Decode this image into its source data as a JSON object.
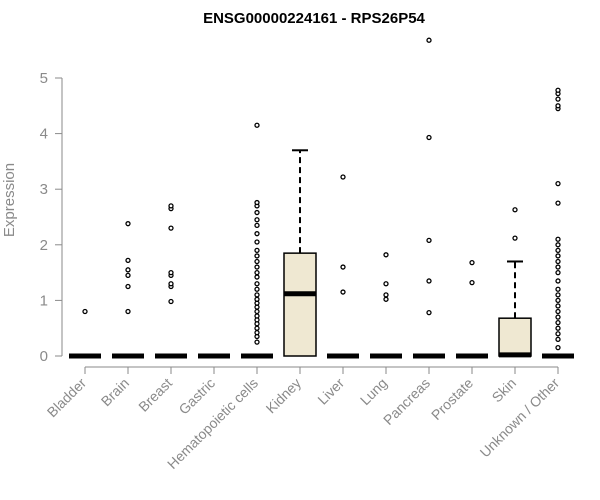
{
  "chart_data": {
    "type": "box",
    "title": "ENSG00000224161 - RPS26P54",
    "ylabel": "Expression",
    "xlabel": "",
    "ylim": [
      0,
      5.3
    ],
    "yticks": [
      0,
      1,
      2,
      3,
      4,
      5
    ],
    "box_fill": "#efe8d2",
    "categories": [
      "Bladder",
      "Brain",
      "Breast",
      "Gastric",
      "Hematopoietic cells",
      "Kidney",
      "Liver",
      "Lung",
      "Pancreas",
      "Prostate",
      "Skin",
      "Unknown / Other"
    ],
    "boxes": [
      {
        "q1": 0,
        "median": 0,
        "q3": 0,
        "whisker_low": 0,
        "whisker_high": 0,
        "outliers": [
          0.8
        ]
      },
      {
        "q1": 0,
        "median": 0,
        "q3": 0,
        "whisker_low": 0,
        "whisker_high": 0,
        "outliers": [
          0.8,
          1.25,
          1.45,
          1.55,
          1.72,
          2.38
        ]
      },
      {
        "q1": 0,
        "median": 0,
        "q3": 0,
        "whisker_low": 0,
        "whisker_high": 0,
        "outliers": [
          0.98,
          1.25,
          1.3,
          1.45,
          1.5,
          2.3,
          2.65,
          2.7
        ]
      },
      {
        "q1": 0,
        "median": 0,
        "q3": 0,
        "whisker_low": 0,
        "whisker_high": 0,
        "outliers": []
      },
      {
        "q1": 0,
        "median": 0,
        "q3": 0,
        "whisker_low": 0,
        "whisker_high": 0,
        "outliers": [
          0.25,
          0.35,
          0.42,
          0.5,
          0.58,
          0.65,
          0.72,
          0.8,
          0.88,
          0.95,
          1.02,
          1.1,
          1.2,
          1.3,
          1.42,
          1.5,
          1.6,
          1.7,
          1.8,
          1.9,
          2.05,
          2.2,
          2.35,
          2.45,
          2.58,
          2.7,
          2.76,
          4.15
        ]
      },
      {
        "q1": 0,
        "median": 1.12,
        "q3": 1.85,
        "whisker_low": 0,
        "whisker_high": 3.7,
        "outliers": []
      },
      {
        "q1": 0,
        "median": 0,
        "q3": 0,
        "whisker_low": 0,
        "whisker_high": 0,
        "outliers": [
          1.15,
          1.6,
          3.22
        ]
      },
      {
        "q1": 0,
        "median": 0,
        "q3": 0,
        "whisker_low": 0,
        "whisker_high": 0,
        "outliers": [
          1.02,
          1.1,
          1.3,
          1.82
        ]
      },
      {
        "q1": 0,
        "median": 0,
        "q3": 0,
        "whisker_low": 0,
        "whisker_high": 0,
        "outliers": [
          0.78,
          1.35,
          2.08,
          3.93,
          5.68
        ]
      },
      {
        "q1": 0,
        "median": 0,
        "q3": 0,
        "whisker_low": 0,
        "whisker_high": 0,
        "outliers": [
          1.32,
          1.68
        ]
      },
      {
        "q1": 0,
        "median": 0.02,
        "q3": 0.68,
        "whisker_low": 0,
        "whisker_high": 1.7,
        "outliers": [
          2.12,
          2.63
        ]
      },
      {
        "q1": 0,
        "median": 0,
        "q3": 0,
        "whisker_low": 0,
        "whisker_high": 0,
        "outliers": [
          0.15,
          0.3,
          0.4,
          0.5,
          0.6,
          0.7,
          0.8,
          0.9,
          1.0,
          1.1,
          1.2,
          1.35,
          1.5,
          1.6,
          1.7,
          1.8,
          1.9,
          2.0,
          2.1,
          2.75,
          3.1,
          4.45,
          4.5,
          4.62,
          4.72,
          4.78
        ]
      }
    ]
  }
}
